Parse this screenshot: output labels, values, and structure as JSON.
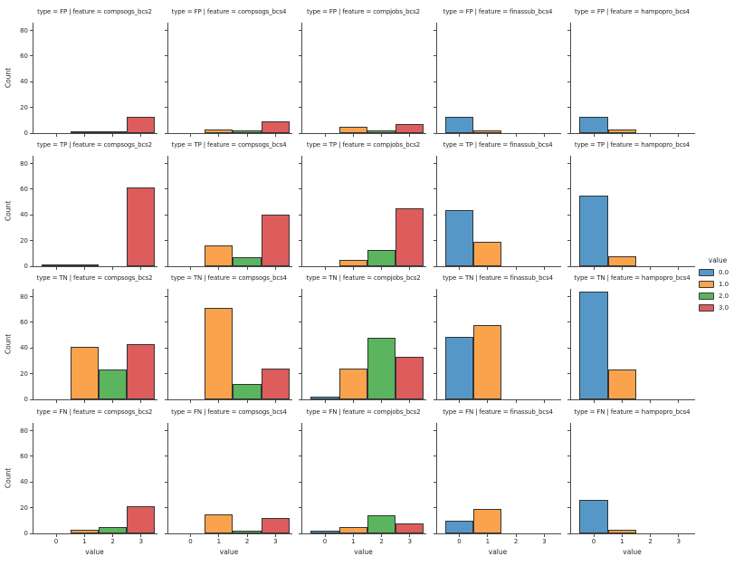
{
  "figure": {
    "background": "#ffffff",
    "text_color": "#262626",
    "spine_color": "#4a4a4a",
    "bar_edge_color": "#343434"
  },
  "chart_data": {
    "type": "bar",
    "subtype": "faceted-histogram-grid",
    "facet": {
      "row_var": "type",
      "col_var": "feature",
      "rows": [
        "FP",
        "TP",
        "TN",
        "FN"
      ],
      "cols": [
        "compsogs_bcs2",
        "compsogs_bcs4",
        "compjobs_bcs2",
        "finassub_bcs4",
        "hampopro_bcs4"
      ]
    },
    "categories": [
      "0",
      "1",
      "2",
      "3"
    ],
    "series": [
      {
        "name": "0.0",
        "color": "#5598c7"
      },
      {
        "name": "1.0",
        "color": "#fba34c"
      },
      {
        "name": "2.0",
        "color": "#5ab55e"
      },
      {
        "name": "3.0",
        "color": "#dc5d5c"
      }
    ],
    "facets": [
      {
        "row": "FP",
        "col": "compsogs_bcs2",
        "title": "type = FP | feature = compsogs_bcs2",
        "counts": [
          0,
          1,
          1,
          13
        ]
      },
      {
        "row": "FP",
        "col": "compsogs_bcs4",
        "title": "type = FP | feature = compsogs_bcs4",
        "counts": [
          0,
          3,
          2,
          9
        ]
      },
      {
        "row": "FP",
        "col": "compjobs_bcs2",
        "title": "type = FP | feature = compjobs_bcs2",
        "counts": [
          0,
          5,
          2,
          7
        ]
      },
      {
        "row": "FP",
        "col": "finassub_bcs4",
        "title": "type = FP | feature = finassub_bcs4",
        "counts": [
          13,
          2,
          0,
          0
        ]
      },
      {
        "row": "FP",
        "col": "hampopro_bcs4",
        "title": "type = FP | feature = hampopro_bcs4",
        "counts": [
          13,
          3,
          0,
          0
        ]
      },
      {
        "row": "TP",
        "col": "compsogs_bcs2",
        "title": "type = TP | feature = compsogs_bcs2",
        "counts": [
          1,
          1,
          0,
          61
        ]
      },
      {
        "row": "TP",
        "col": "compsogs_bcs4",
        "title": "type = TP | feature = compsogs_bcs4",
        "counts": [
          0,
          16,
          7,
          40
        ]
      },
      {
        "row": "TP",
        "col": "compjobs_bcs2",
        "title": "type = TP | feature = compjobs_bcs2",
        "counts": [
          0,
          5,
          13,
          45
        ]
      },
      {
        "row": "TP",
        "col": "finassub_bcs4",
        "title": "type = TP | feature = finassub_bcs4",
        "counts": [
          44,
          19,
          0,
          0
        ]
      },
      {
        "row": "TP",
        "col": "hampopro_bcs4",
        "title": "type = TP | feature = hampopro_bcs4",
        "counts": [
          55,
          8,
          0,
          0
        ]
      },
      {
        "row": "TN",
        "col": "compsogs_bcs2",
        "title": "type = TN | feature = compsogs_bcs2",
        "counts": [
          0,
          41,
          23,
          43
        ]
      },
      {
        "row": "TN",
        "col": "compsogs_bcs4",
        "title": "type = TN | feature = compsogs_bcs4",
        "counts": [
          0,
          71,
          12,
          24
        ]
      },
      {
        "row": "TN",
        "col": "compjobs_bcs2",
        "title": "type = TN | feature = compjobs_bcs2",
        "counts": [
          2,
          24,
          48,
          33
        ]
      },
      {
        "row": "TN",
        "col": "finassub_bcs4",
        "title": "type = TN | feature = finassub_bcs4",
        "counts": [
          49,
          58,
          0,
          0
        ]
      },
      {
        "row": "TN",
        "col": "hampopro_bcs4",
        "title": "type = TN | feature = hampopro_bcs4",
        "counts": [
          84,
          23,
          0,
          0
        ]
      },
      {
        "row": "FN",
        "col": "compsogs_bcs2",
        "title": "type = FN | feature = compsogs_bcs2",
        "counts": [
          0,
          3,
          5,
          21
        ]
      },
      {
        "row": "FN",
        "col": "compsogs_bcs4",
        "title": "type = FN | feature = compsogs_bcs4",
        "counts": [
          0,
          15,
          2,
          12
        ]
      },
      {
        "row": "FN",
        "col": "compjobs_bcs2",
        "title": "type = FN | feature = compjobs_bcs2",
        "counts": [
          2,
          5,
          14,
          8
        ]
      },
      {
        "row": "FN",
        "col": "finassub_bcs4",
        "title": "type = FN | feature = finassub_bcs4",
        "counts": [
          10,
          19,
          0,
          0
        ]
      },
      {
        "row": "FN",
        "col": "hampopro_bcs4",
        "title": "type = FN | feature = hampopro_bcs4",
        "counts": [
          26,
          3,
          0,
          0
        ]
      }
    ],
    "xlabel": "value",
    "ylabel": "Count",
    "yticks": [
      "0",
      "20",
      "40",
      "60",
      "80"
    ],
    "xticks": [
      "0",
      "1",
      "2",
      "3"
    ],
    "ylim": [
      0,
      86
    ],
    "grid": false,
    "legend": {
      "title": "value",
      "entries": [
        "0.0",
        "1.0",
        "2.0",
        "3.0"
      ],
      "position": "center-right"
    }
  }
}
